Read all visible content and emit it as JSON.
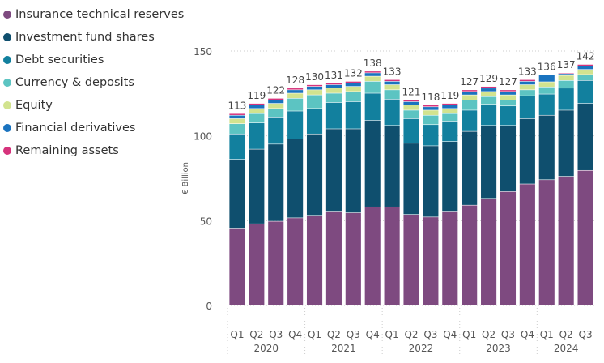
{
  "chart_data": {
    "type": "bar",
    "stacked": true,
    "ylabel": "€ Billion",
    "ylim": [
      0,
      150
    ],
    "yticks": [
      0,
      50,
      100,
      150
    ],
    "grid": true,
    "legend_position": "top-left",
    "quarters": [
      "Q1",
      "Q2",
      "Q3",
      "Q4",
      "Q1",
      "Q2",
      "Q3",
      "Q4",
      "Q1",
      "Q2",
      "Q3",
      "Q4",
      "Q1",
      "Q2",
      "Q3",
      "Q4",
      "Q1",
      "Q2",
      "Q3"
    ],
    "years": [
      {
        "label": "2020",
        "count": 4
      },
      {
        "label": "2021",
        "count": 4
      },
      {
        "label": "2022",
        "count": 4
      },
      {
        "label": "2023",
        "count": 4
      },
      {
        "label": "2024",
        "count": 3
      }
    ],
    "totals": [
      113,
      119,
      122,
      128,
      130,
      131,
      132,
      138,
      133,
      121,
      118,
      119,
      127,
      129,
      127,
      133,
      136,
      137,
      142
    ],
    "series": [
      {
        "name": "Insurance technical reserves",
        "color": "#7e4a80",
        "values": [
          45,
          48,
          49.5,
          51.5,
          53,
          55,
          54.5,
          58,
          58,
          53.5,
          52,
          55,
          59,
          63,
          67,
          71.5,
          74,
          76,
          79.5
        ]
      },
      {
        "name": "Investment fund shares",
        "color": "#0f4f6e",
        "values": [
          41,
          44,
          45.5,
          46.5,
          48,
          49,
          49.5,
          51,
          48,
          42,
          42,
          41.5,
          43.5,
          43,
          39,
          38.5,
          38,
          39,
          39.5
        ]
      },
      {
        "name": "Debt securities",
        "color": "#12809e",
        "values": [
          15,
          15.5,
          15.5,
          16.5,
          15,
          15.5,
          16,
          16,
          15.5,
          14.5,
          12.5,
          12,
          12.5,
          12.5,
          11.5,
          13.5,
          12.5,
          13,
          13.5
        ]
      },
      {
        "name": "Currency & deposits",
        "color": "#5cc4c2",
        "values": [
          6,
          5.5,
          5.5,
          7.5,
          8,
          5.5,
          6,
          7,
          5.5,
          5,
          5.5,
          4.5,
          6,
          4.5,
          3.5,
          3.5,
          4.2,
          4.5,
          3.5
        ]
      },
      {
        "name": "Equity",
        "color": "#d2e38f",
        "values": [
          3,
          3,
          3,
          3,
          3,
          3,
          3,
          3,
          3,
          3,
          3,
          3,
          3,
          3,
          3,
          3,
          3,
          3,
          3
        ]
      },
      {
        "name": "Financial derivatives",
        "color": "#1a73bf",
        "values": [
          2,
          2,
          2,
          2,
          2,
          2,
          2,
          2,
          2,
          2,
          2,
          2,
          2,
          2,
          2,
          2,
          4,
          1,
          2
        ]
      },
      {
        "name": "Remaining assets",
        "color": "#d6337c",
        "values": [
          1,
          1,
          1,
          1,
          1,
          1,
          1,
          1,
          1,
          1,
          1,
          1,
          1,
          1,
          1,
          1,
          0.3,
          0.5,
          1
        ]
      }
    ]
  }
}
